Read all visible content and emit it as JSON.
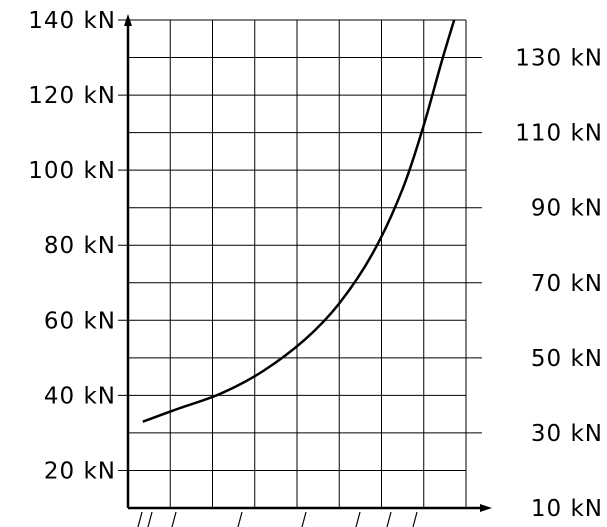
{
  "chart_data": {
    "type": "line",
    "title": "",
    "xlabel": "",
    "ylabel": "",
    "grid": true,
    "left_axis": {
      "ticks": [
        20,
        40,
        60,
        80,
        100,
        120,
        140
      ],
      "tick_labels": [
        "20 kN",
        "40 kN",
        "60 kN",
        "80 kN",
        "100 kN",
        "120 kN",
        "140 kN"
      ],
      "ylim": [
        10,
        140
      ]
    },
    "right_axis": {
      "ticks": [
        10,
        30,
        50,
        70,
        90,
        110,
        130
      ],
      "tick_labels": [
        "10 kN",
        "30 kN",
        "50 kN",
        "70 kN",
        "90 kN",
        "110 kN",
        "130 kN"
      ],
      "ylim": [
        10,
        140
      ]
    },
    "x_columns": 8,
    "xlim": [
      0,
      8
    ],
    "series": [
      {
        "x": [
          0.35,
          1.2,
          2.2,
          3.2,
          4.2,
          5.0,
          5.8,
          6.5,
          7.0,
          7.4,
          7.72
        ],
        "values": [
          33,
          36.5,
          40.5,
          46.5,
          55,
          64.5,
          78,
          95,
          112,
          128,
          140
        ]
      }
    ]
  }
}
